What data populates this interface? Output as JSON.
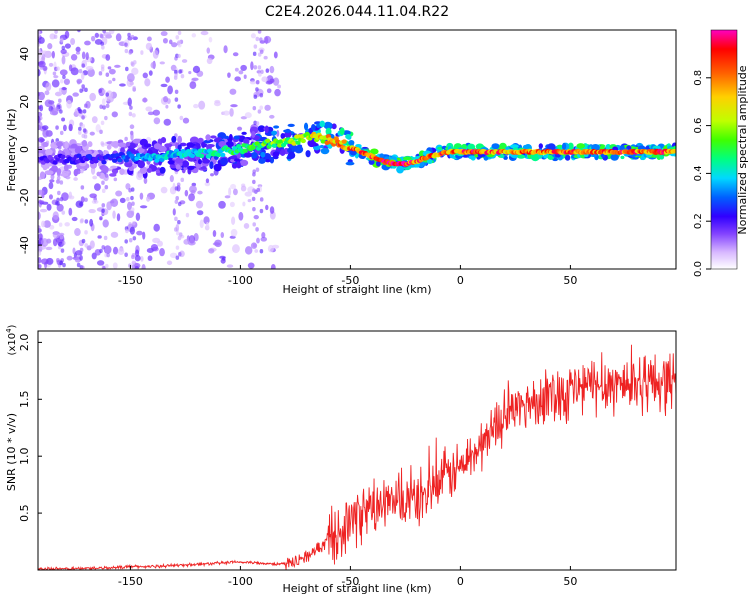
{
  "title": "C2E4.2026.044.11.04.R22",
  "chart_data": [
    {
      "type": "heatmap",
      "xlabel": "Height of straight line (km)",
      "ylabel": "Frequency (Hz)",
      "xlim": [
        -192,
        98
      ],
      "ylim": [
        -50,
        50
      ],
      "xticks": [
        -150,
        -100,
        -50,
        0,
        50
      ],
      "xtick_labels": [
        "-150",
        "-100",
        "-50",
        "0",
        "50"
      ],
      "yticks": [
        -40,
        -20,
        0,
        20,
        40
      ],
      "ytick_labels": [
        "-40",
        "-20",
        "0",
        "20",
        "40"
      ],
      "ridge": {
        "x": [
          -190,
          -160,
          -150,
          -140,
          -130,
          -120,
          -110,
          -100,
          -90,
          -80,
          -70,
          -65,
          -60,
          -55,
          -50,
          -45,
          -40,
          -35,
          -30,
          -25,
          -20,
          -15,
          -10,
          -5,
          0,
          10,
          20,
          30,
          40,
          50,
          60,
          70,
          80,
          90,
          98
        ],
        "freq": [
          -4,
          -4,
          -3,
          -4,
          -2,
          -2,
          -1,
          0,
          2,
          3,
          5,
          5,
          4,
          3,
          1,
          -1,
          -3,
          -5,
          -6,
          -6,
          -5,
          -3,
          -2,
          -1,
          -1,
          -1,
          -1,
          -1,
          -1,
          -1,
          -1,
          -1,
          -1,
          -1,
          -1
        ],
        "amplitude": [
          0.2,
          0.25,
          0.35,
          0.4,
          0.4,
          0.45,
          0.45,
          0.5,
          0.55,
          0.6,
          0.65,
          0.7,
          0.75,
          0.8,
          0.85,
          0.9,
          0.95,
          1.0,
          1.0,
          0.95,
          0.9,
          0.85,
          0.85,
          0.9,
          0.9,
          0.95,
          0.85,
          0.85,
          0.85,
          0.9,
          0.85,
          0.9,
          0.9,
          0.9,
          0.9
        ]
      },
      "colorbar": {
        "label": "Normalized spectral amplitude",
        "range": [
          0.0,
          1.0
        ],
        "ticks": [
          0.0,
          0.2,
          0.4,
          0.6,
          0.8
        ],
        "tick_labels": [
          "0.0",
          "0.2",
          "0.4",
          "0.6",
          "0.8"
        ],
        "colors": [
          "#ffffff",
          "#d8b8ff",
          "#8040ff",
          "#3000ff",
          "#0060ff",
          "#00d8ff",
          "#00ff80",
          "#40ff00",
          "#c0ff00",
          "#ffd000",
          "#ff6000",
          "#ff0000",
          "#ff00c0"
        ]
      }
    },
    {
      "type": "line",
      "xlabel": "Height of straight line (km)",
      "ylabel": "SNR (10 * v/v)",
      "multiplier": "(x10",
      "multiplier_exp": "4",
      "multiplier_close": ")",
      "xlim": [
        -192,
        98
      ],
      "ylim": [
        0,
        2.1
      ],
      "xticks": [
        -150,
        -100,
        -50,
        0,
        50
      ],
      "xtick_labels": [
        "-150",
        "-100",
        "-50",
        "0",
        "50"
      ],
      "yticks": [
        0.5,
        1.0,
        1.5,
        2.0
      ],
      "ytick_labels": [
        "0.5",
        "1.0",
        "1.5",
        "2.0"
      ],
      "color": "#ee2222",
      "series": [
        {
          "name": "SNR",
          "x": [
            -192,
            -180,
            -170,
            -160,
            -150,
            -140,
            -130,
            -120,
            -110,
            -100,
            -90,
            -80,
            -75,
            -70,
            -65,
            -60,
            -55,
            -50,
            -45,
            -40,
            -35,
            -30,
            -25,
            -20,
            -15,
            -10,
            -5,
            0,
            5,
            10,
            15,
            20,
            25,
            30,
            35,
            40,
            45,
            50,
            55,
            60,
            65,
            70,
            75,
            80,
            85,
            90,
            95,
            98
          ],
          "y": [
            0.01,
            0.01,
            0.015,
            0.02,
            0.03,
            0.03,
            0.04,
            0.05,
            0.06,
            0.07,
            0.06,
            0.05,
            0.08,
            0.12,
            0.18,
            0.28,
            0.35,
            0.42,
            0.5,
            0.54,
            0.56,
            0.58,
            0.6,
            0.62,
            0.68,
            0.75,
            0.85,
            0.9,
            1.0,
            1.1,
            1.25,
            1.35,
            1.42,
            1.46,
            1.5,
            1.54,
            1.56,
            1.58,
            1.6,
            1.62,
            1.63,
            1.64,
            1.64,
            1.65,
            1.65,
            1.66,
            1.66,
            1.66
          ]
        }
      ]
    }
  ]
}
